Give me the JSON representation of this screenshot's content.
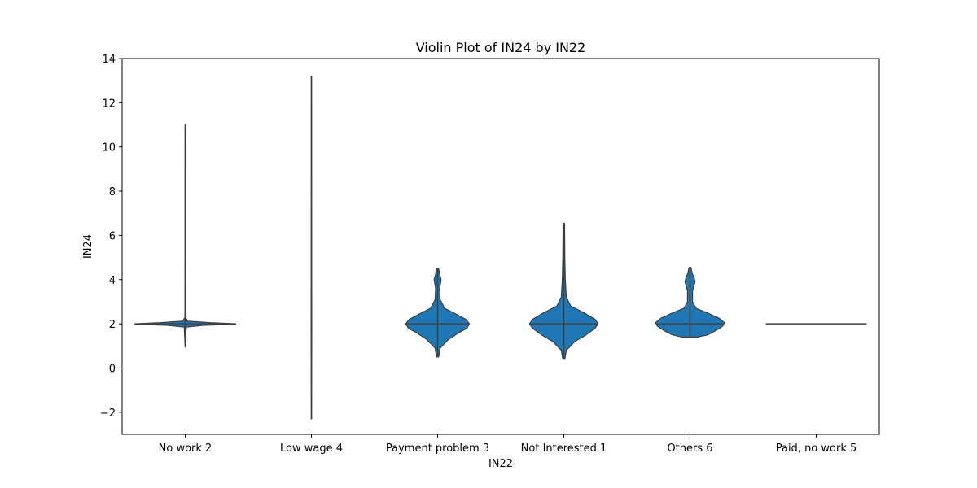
{
  "chart_data": {
    "type": "violin",
    "title": "Violin Plot of IN24 by IN22",
    "xlabel": "IN22",
    "ylabel": "IN24",
    "ylim": [
      -3,
      14
    ],
    "yticks": [
      -2,
      0,
      2,
      4,
      6,
      8,
      10,
      12,
      14
    ],
    "ytick_labels": [
      "−2",
      "0",
      "2",
      "4",
      "6",
      "8",
      "10",
      "12",
      "14"
    ],
    "grid": false,
    "colors": {
      "fill": "#1f77b4",
      "edge": "#3d3d3d",
      "axis": "#000000"
    },
    "categories": [
      "No work 2",
      "Low wage 4",
      "Payment problem 3",
      "Not Interested 1",
      "Others 6",
      "Paid, no work 5"
    ],
    "violins": [
      {
        "category": "No work 2",
        "min": 0.95,
        "max": 11.0,
        "q1": 1.98,
        "median": 2.0,
        "q3": 2.02,
        "profile": [
          [
            0.95,
            0.002
          ],
          [
            1.85,
            0.02
          ],
          [
            1.93,
            0.35
          ],
          [
            1.98,
            1.0
          ],
          [
            2.0,
            1.0
          ],
          [
            2.05,
            0.5
          ],
          [
            2.12,
            0.05
          ],
          [
            2.3,
            0.005
          ],
          [
            11.0,
            0.002
          ]
        ]
      },
      {
        "category": "Low wage 4",
        "min": -2.3,
        "max": 13.2,
        "q1": 2.0,
        "median": 2.0,
        "q3": 2.0,
        "profile": [
          [
            -2.3,
            0.002
          ],
          [
            0.0,
            0.004
          ],
          [
            2.0,
            0.006
          ],
          [
            4.0,
            0.004
          ],
          [
            13.2,
            0.002
          ]
        ]
      },
      {
        "category": "Payment problem 3",
        "min": 0.5,
        "max": 4.5,
        "q1": 1.73,
        "median": 2.0,
        "q3": 2.27,
        "profile": [
          [
            0.5,
            0.02
          ],
          [
            0.9,
            0.05
          ],
          [
            1.3,
            0.22
          ],
          [
            1.6,
            0.42
          ],
          [
            1.8,
            0.58
          ],
          [
            2.0,
            0.63
          ],
          [
            2.2,
            0.56
          ],
          [
            2.45,
            0.36
          ],
          [
            2.7,
            0.14
          ],
          [
            3.1,
            0.05
          ],
          [
            3.6,
            0.04
          ],
          [
            4.0,
            0.07
          ],
          [
            4.25,
            0.04
          ],
          [
            4.5,
            0.02
          ]
        ]
      },
      {
        "category": "Not Interested 1",
        "min": 0.4,
        "max": 6.55,
        "q1": 1.7,
        "median": 2.0,
        "q3": 2.3,
        "profile": [
          [
            0.4,
            0.02
          ],
          [
            0.8,
            0.05
          ],
          [
            1.2,
            0.22
          ],
          [
            1.5,
            0.44
          ],
          [
            1.8,
            0.62
          ],
          [
            2.0,
            0.68
          ],
          [
            2.2,
            0.62
          ],
          [
            2.5,
            0.4
          ],
          [
            2.8,
            0.14
          ],
          [
            3.2,
            0.05
          ],
          [
            4.0,
            0.03
          ],
          [
            5.0,
            0.02
          ],
          [
            6.55,
            0.015
          ]
        ]
      },
      {
        "category": "Others 6",
        "min": 1.4,
        "max": 4.55,
        "q1": 1.72,
        "median": 2.0,
        "q3": 2.28,
        "profile": [
          [
            1.4,
            0.15
          ],
          [
            1.5,
            0.35
          ],
          [
            1.7,
            0.52
          ],
          [
            1.9,
            0.65
          ],
          [
            2.05,
            0.68
          ],
          [
            2.25,
            0.58
          ],
          [
            2.5,
            0.34
          ],
          [
            2.7,
            0.12
          ],
          [
            3.0,
            0.05
          ],
          [
            3.5,
            0.05
          ],
          [
            3.9,
            0.1
          ],
          [
            4.1,
            0.08
          ],
          [
            4.3,
            0.04
          ],
          [
            4.55,
            0.02
          ]
        ]
      },
      {
        "category": "Paid, no work 5",
        "min": 2.0,
        "max": 2.0,
        "q1": 2.0,
        "median": 2.0,
        "q3": 2.0,
        "flat": true,
        "profile": []
      }
    ]
  }
}
